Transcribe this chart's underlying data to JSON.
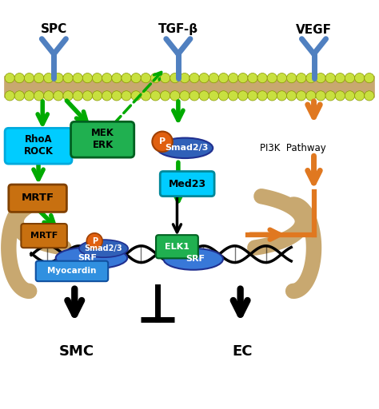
{
  "bg_color": "#ffffff",
  "lipid_color": "#c8e040",
  "receptor_color": "#5080c0",
  "colors": {
    "green": "#00aa00",
    "orange_arrow": "#e07820",
    "orange_box": "#c87010",
    "orange_circle": "#e06010",
    "cyan_box": "#00ccff",
    "cyan_dark": "#00aadd",
    "green_box": "#20b050",
    "blue_smad": "#3060b8",
    "tan": "#c8a870",
    "blue_srf": "#3878d8"
  },
  "labels": {
    "SPC": "SPC",
    "TGFB": "TGF-β",
    "VEGF": "VEGF",
    "RhoA_ROCK": "RhoA\nROCK",
    "MEK_ERK": "MEK\nERK",
    "MRTF_top": "MRTF",
    "MRTF_bot": "MRTF",
    "Smad23_top": "Smad2/3",
    "Smad23_bot": "Smad2/3",
    "Med23": "Med23",
    "ELK1": "ELK1",
    "SRF_left": "SRF",
    "SRF_right": "SRF",
    "Myocardin": "Myocardin",
    "PI3K": "PI3K  Pathway",
    "SMC": "SMC",
    "EC": "EC",
    "P": "P"
  }
}
